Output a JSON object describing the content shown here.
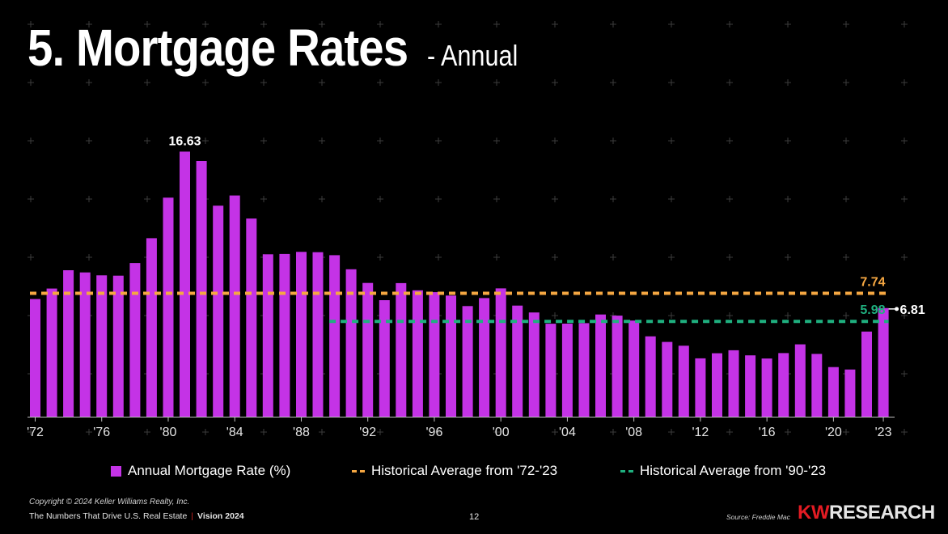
{
  "header": {
    "title": "5. Mortgage Rates",
    "subtitle": "- Annual"
  },
  "chart_data": {
    "type": "bar",
    "ylim": [
      0,
      18
    ],
    "categories": [
      "1972",
      "1973",
      "1974",
      "1975",
      "1976",
      "1977",
      "1978",
      "1979",
      "1980",
      "1981",
      "1982",
      "1983",
      "1984",
      "1985",
      "1986",
      "1987",
      "1988",
      "1989",
      "1990",
      "1991",
      "1992",
      "1993",
      "1994",
      "1995",
      "1996",
      "1997",
      "1998",
      "1999",
      "2000",
      "2001",
      "2002",
      "2003",
      "2004",
      "2005",
      "2006",
      "2007",
      "2008",
      "2009",
      "2010",
      "2011",
      "2012",
      "2013",
      "2014",
      "2015",
      "2016",
      "2017",
      "2018",
      "2019",
      "2020",
      "2021",
      "2022",
      "2023"
    ],
    "tick_labels": [
      "'72",
      "'76",
      "'80",
      "'84",
      "'88",
      "'92",
      "'96",
      "'00",
      "'04",
      "'08",
      "'12",
      "'16",
      "'20",
      "'23"
    ],
    "tick_categories": [
      "1972",
      "1976",
      "1980",
      "1984",
      "1988",
      "1992",
      "1996",
      "2000",
      "2004",
      "2008",
      "2012",
      "2016",
      "2020",
      "2023"
    ],
    "series": [
      {
        "name": "Annual Mortgage Rate (%)",
        "color": "#c433e6",
        "values": [
          7.38,
          8.04,
          9.19,
          9.05,
          8.87,
          8.85,
          9.64,
          11.2,
          13.74,
          16.63,
          16.04,
          13.24,
          13.88,
          12.43,
          10.19,
          10.21,
          10.34,
          10.32,
          10.13,
          9.25,
          8.39,
          7.31,
          8.38,
          7.93,
          7.81,
          7.6,
          6.94,
          7.44,
          8.05,
          6.97,
          6.54,
          5.83,
          5.84,
          5.87,
          6.41,
          6.34,
          6.03,
          5.04,
          4.69,
          4.45,
          3.66,
          3.98,
          4.17,
          3.85,
          3.65,
          3.99,
          4.54,
          3.94,
          3.11,
          2.96,
          5.34,
          6.81
        ]
      }
    ],
    "reference_lines": [
      {
        "name": "Historical Average from '72-'23",
        "value": 7.74,
        "label": "7.74",
        "color": "#f5a742",
        "start": "1972",
        "end": "2023"
      },
      {
        "name": "Historical Average from '90-'23",
        "value": 5.98,
        "label": "5.98",
        "color": "#1fb07f",
        "start": "1990",
        "end": "2023"
      }
    ],
    "annotations": [
      {
        "category": "1981",
        "label": "16.63"
      },
      {
        "category": "2023",
        "label": "6.81"
      }
    ]
  },
  "legend": {
    "bar_label": "Annual Mortgage Rate (%)",
    "avg_all_label": "Historical Average from '72-'23",
    "avg_recent_label": "Historical Average from '90-'23"
  },
  "footer": {
    "copyright": "Copyright © 2024 Keller Williams Realty, Inc.",
    "tagline": "The Numbers That Drive U.S. Real Estate",
    "vision": "Vision 2024",
    "page_number": "12",
    "source": "Source: Freddie Mac",
    "logo_kw": "KW",
    "logo_research": "RESEARCH"
  },
  "colors": {
    "background": "#000000",
    "bar": "#c433e6",
    "avg_all": "#f5a742",
    "avg_recent": "#1fb07f",
    "brand_red": "#e31b23"
  }
}
